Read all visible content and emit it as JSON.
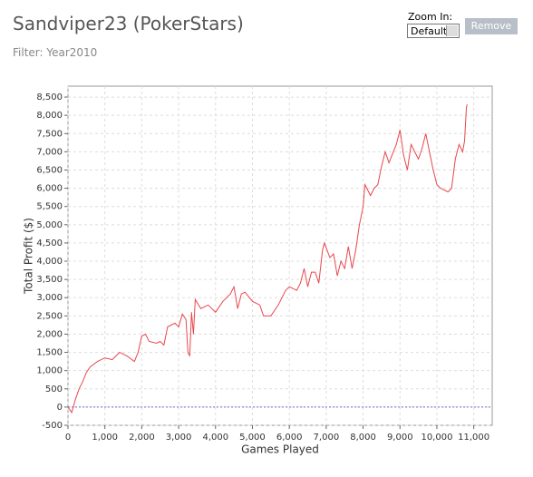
{
  "controls": {
    "zoom_label": "Zoom In:",
    "zoom_value": "Default",
    "remove": "Remove"
  },
  "chart_data": {
    "type": "line",
    "title": "Sandviper23 (PokerStars)",
    "subtitle": "Filter: Year2010",
    "x_label": "Games Played",
    "y_label": "Total Profit ($)",
    "grid": true,
    "zero_line": true,
    "xlim": [
      0,
      11500
    ],
    "ylim": [
      -500,
      8800
    ],
    "xticks": [
      0,
      {
        "value": 1000,
        "label": "1,000"
      },
      {
        "value": 2000,
        "label": "2,000"
      },
      {
        "value": 3000,
        "label": "3,000"
      },
      {
        "value": 4000,
        "label": "4,000"
      },
      {
        "value": 5000,
        "label": "5,000"
      },
      {
        "value": 6000,
        "label": "6,000"
      },
      {
        "value": 7000,
        "label": "7,000"
      },
      {
        "value": 8000,
        "label": "8,000"
      },
      {
        "value": 9000,
        "label": "9,000"
      },
      {
        "value": 10000,
        "label": "10,000"
      },
      {
        "value": 11000,
        "label": "11,000"
      }
    ],
    "yticks": [
      -500,
      0,
      500,
      {
        "value": 1000,
        "label": "1,000"
      },
      {
        "value": 1500,
        "label": "1,500"
      },
      {
        "value": 2000,
        "label": "2,000"
      },
      {
        "value": 2500,
        "label": "2,500"
      },
      {
        "value": 3000,
        "label": "3,000"
      },
      {
        "value": 3500,
        "label": "3,500"
      },
      {
        "value": 4000,
        "label": "4,000"
      },
      {
        "value": 4500,
        "label": "4,500"
      },
      {
        "value": 5000,
        "label": "5,000"
      },
      {
        "value": 5500,
        "label": "5,500"
      },
      {
        "value": 6000,
        "label": "6,000"
      },
      {
        "value": 6500,
        "label": "6,500"
      },
      {
        "value": 7000,
        "label": "7,000"
      },
      {
        "value": 7500,
        "label": "7,500"
      },
      {
        "value": 8000,
        "label": "8,000"
      },
      {
        "value": 8500,
        "label": "8,500"
      }
    ],
    "x": [
      0,
      100,
      200,
      300,
      400,
      500,
      600,
      800,
      1000,
      1200,
      1400,
      1600,
      1800,
      1900,
      2000,
      2100,
      2200,
      2400,
      2500,
      2600,
      2700,
      2900,
      3000,
      3100,
      3200,
      3250,
      3300,
      3350,
      3400,
      3450,
      3600,
      3800,
      4000,
      4200,
      4400,
      4500,
      4600,
      4700,
      4800,
      5000,
      5200,
      5300,
      5500,
      5700,
      5900,
      6000,
      6200,
      6300,
      6400,
      6500,
      6600,
      6700,
      6800,
      6900,
      6950,
      7100,
      7200,
      7300,
      7400,
      7500,
      7600,
      7700,
      7800,
      7900,
      8000,
      8050,
      8200,
      8300,
      8400,
      8500,
      8600,
      8700,
      8900,
      9000,
      9100,
      9200,
      9300,
      9400,
      9500,
      9600,
      9700,
      9800,
      9900,
      10000,
      10100,
      10300,
      10400,
      10500,
      10600,
      10700,
      10750,
      10800,
      10820
    ],
    "series": [
      {
        "color": "#e8474c",
        "values": [
          0,
          -150,
          200,
          500,
          700,
          950,
          1100,
          1250,
          1350,
          1300,
          1500,
          1400,
          1250,
          1500,
          1950,
          2000,
          1800,
          1750,
          1800,
          1700,
          2200,
          2300,
          2200,
          2550,
          2400,
          1500,
          1400,
          2600,
          2000,
          2950,
          2700,
          2800,
          2600,
          2900,
          3100,
          3300,
          2700,
          3100,
          3150,
          2900,
          2800,
          2500,
          2500,
          2800,
          3200,
          3300,
          3200,
          3400,
          3800,
          3300,
          3700,
          3700,
          3400,
          4300,
          4500,
          4100,
          4200,
          3600,
          4000,
          3800,
          4400,
          3800,
          4300,
          5000,
          5500,
          6100,
          5800,
          6000,
          6100,
          6600,
          7000,
          6700,
          7200,
          7600,
          6900,
          6500,
          7200,
          7000,
          6800,
          7100,
          7500,
          7000,
          6500,
          6100,
          6000,
          5900,
          6000,
          6800,
          7200,
          7000,
          7300,
          8200,
          8300
        ]
      }
    ]
  }
}
